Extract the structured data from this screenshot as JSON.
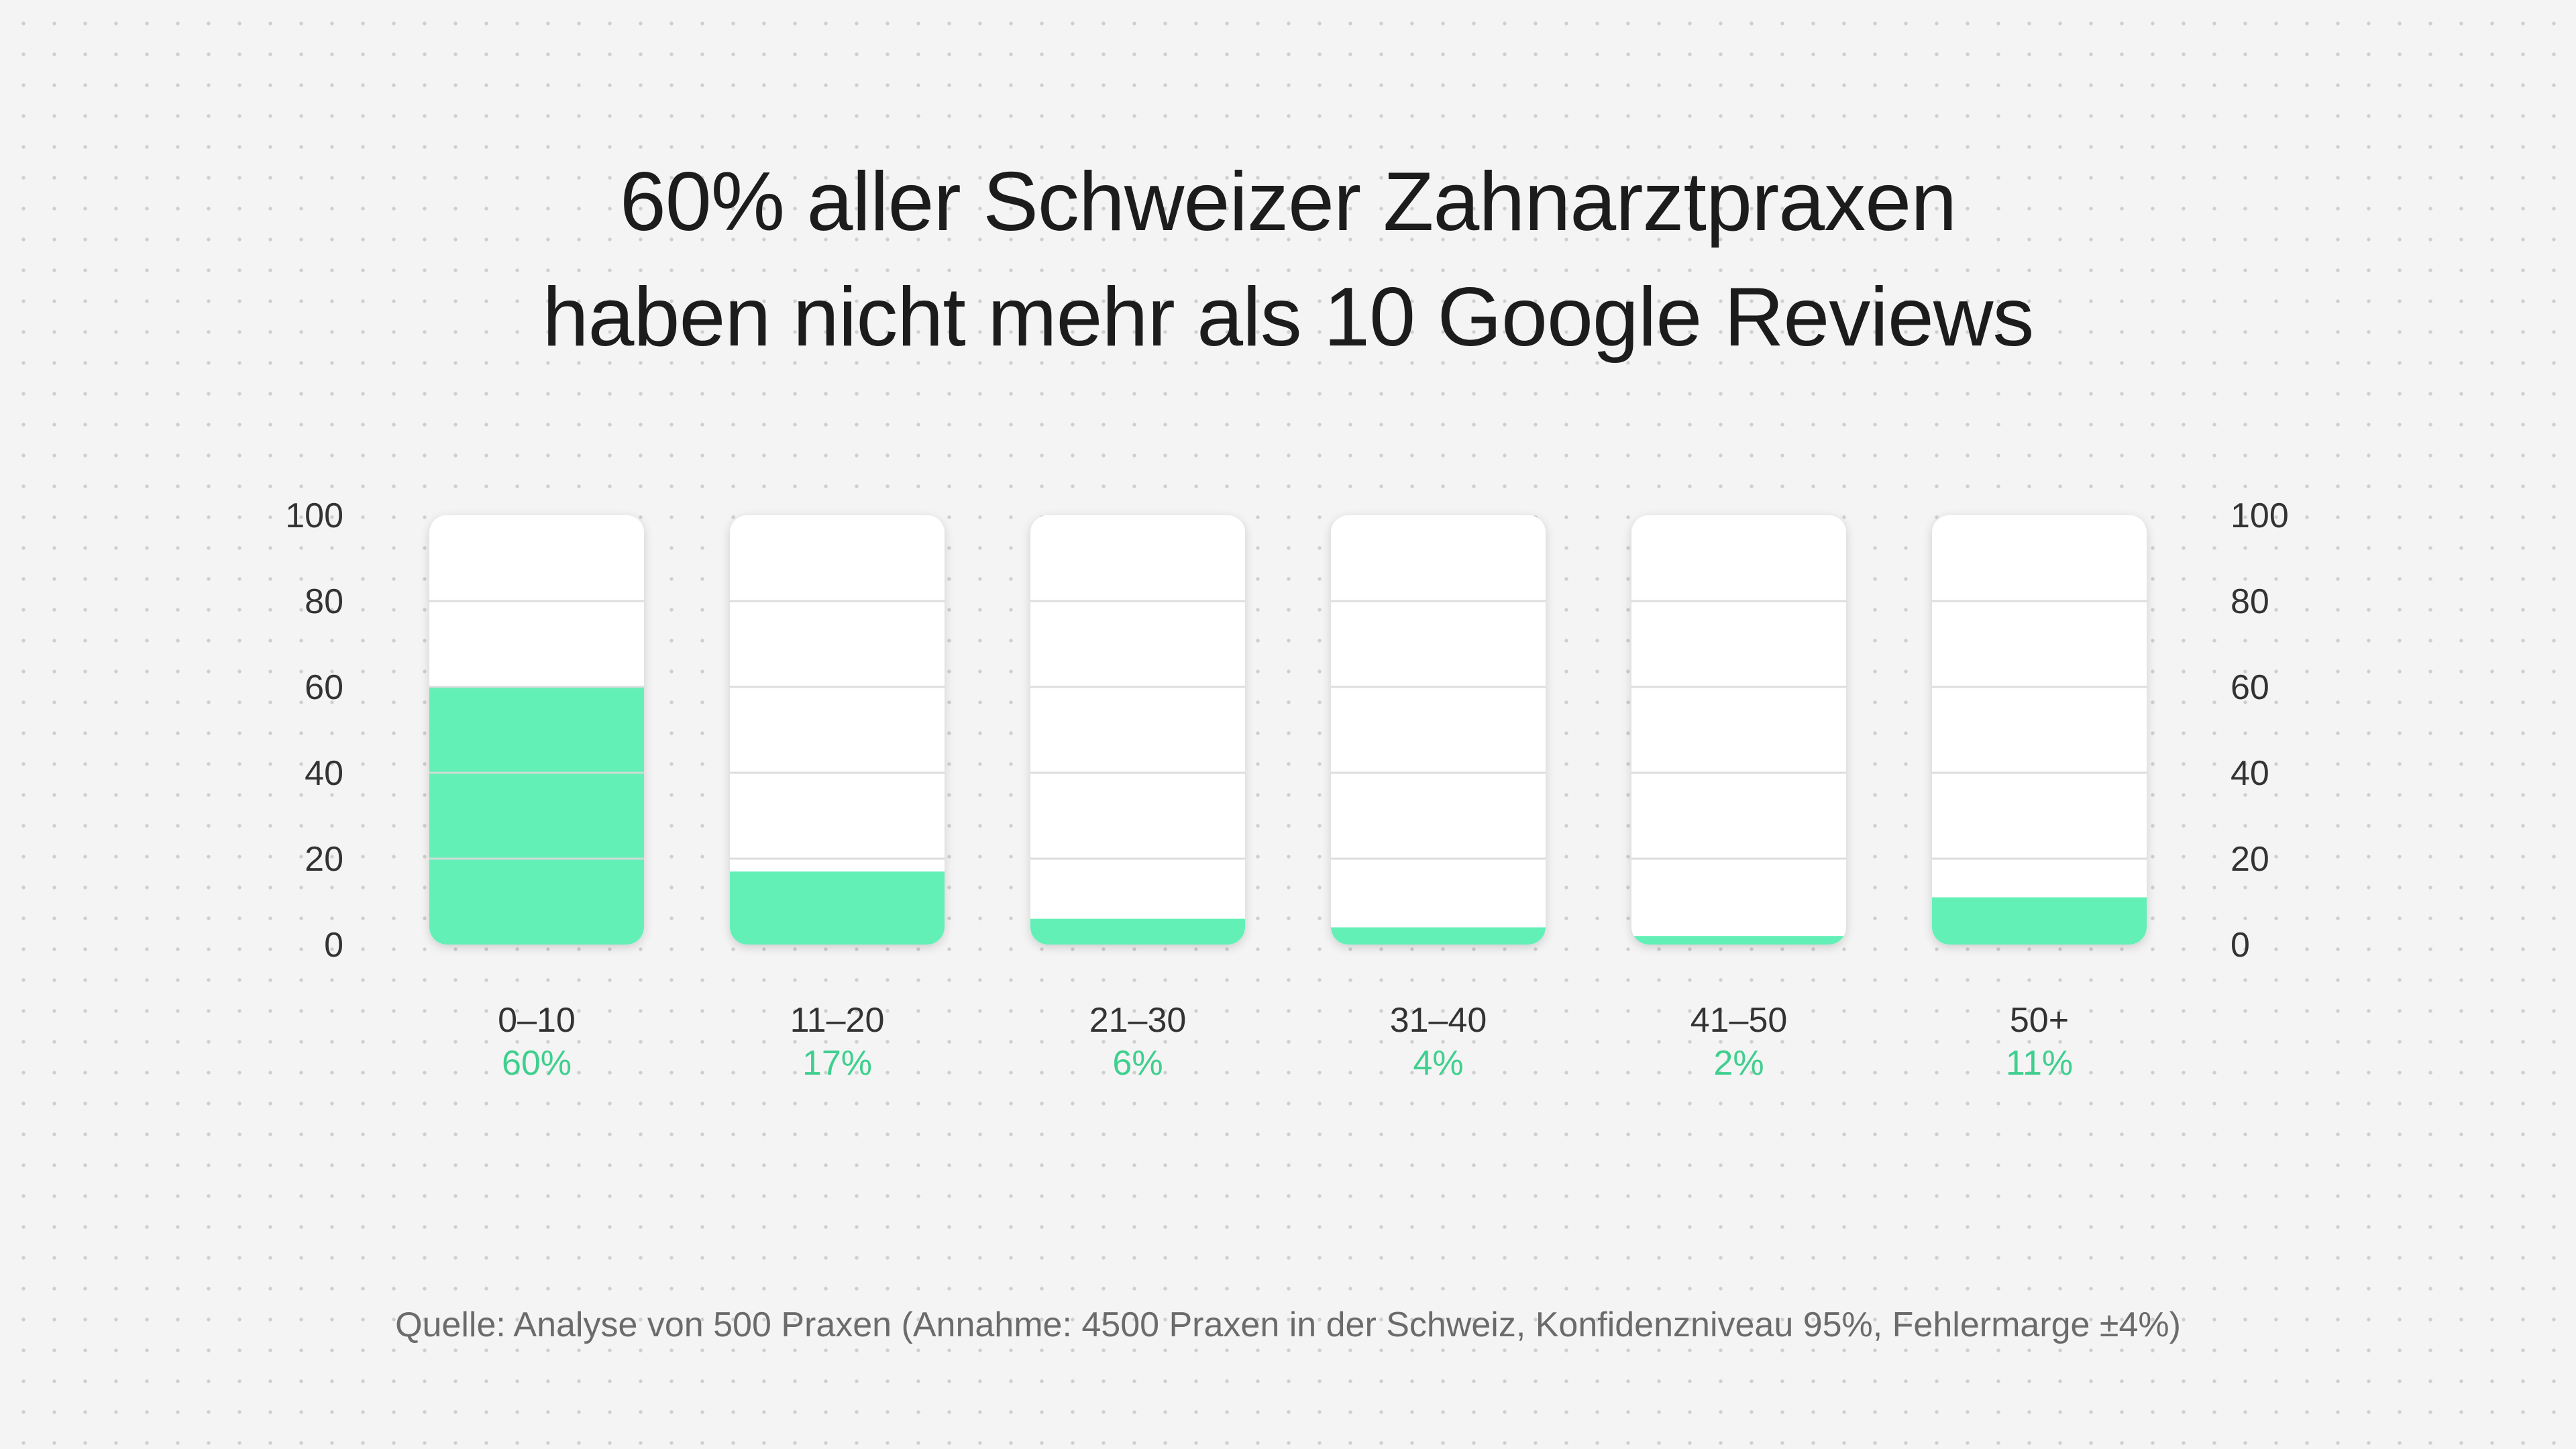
{
  "title_lines": [
    "60% aller Schweizer Zahnarztpraxen",
    "haben nicht mehr als 10 Google Reviews"
  ],
  "source": "Quelle: Analyse von 500 Praxen (Annahme: 4500 Praxen in der Schweiz, Konfidenzniveau 95%, Fehlermarge ±4%)",
  "colors": {
    "bar_fill": "#63f0b7",
    "percent_text": "#3fcf8e",
    "axis_text": "#333333",
    "gridline": "#d9d9d9",
    "bar_background": "#ffffff"
  },
  "chart_data": {
    "type": "bar",
    "title": "60% aller Schweizer Zahnarztpraxen haben nicht mehr als 10 Google Reviews",
    "xlabel": "",
    "ylabel": "",
    "categories": [
      "0–10",
      "11–20",
      "21–30",
      "31–40",
      "41–50",
      "50+"
    ],
    "values": [
      60,
      17,
      6,
      4,
      2,
      11
    ],
    "value_labels": [
      "60%",
      "17%",
      "6%",
      "4%",
      "2%",
      "11%"
    ],
    "ylim": [
      0,
      100
    ],
    "yticks": [
      0,
      20,
      40,
      60,
      80,
      100
    ],
    "ytick_labels": [
      "0",
      "20",
      "40",
      "60",
      "80",
      "100"
    ],
    "grid": true,
    "legend": "none"
  }
}
